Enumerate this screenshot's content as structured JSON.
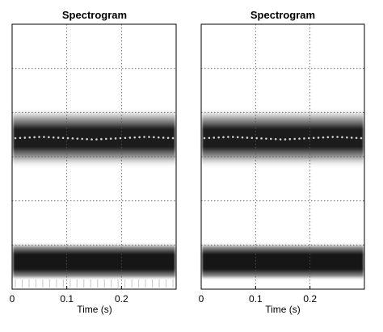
{
  "chart_data": [
    {
      "type": "heatmap",
      "title": "Spectrogram",
      "xlabel": "Time (s)",
      "ylabel": "",
      "xlim": [
        0,
        0.3
      ],
      "x_ticks": [
        "0",
        "0.1",
        "0.2"
      ],
      "x_tick_values": [
        0,
        0.1,
        0.2
      ],
      "y_ticks": [],
      "grid": true,
      "grid_style": "dotted",
      "colormap": "white-to-black",
      "bands": [
        {
          "name": "",
          "center": [
            0.57,
            0.575,
            0.57,
            0.565,
            0.57,
            0.575,
            0.57
          ],
          "half_width": 0.115,
          "dotted_center": true
        },
        {
          "name": "",
          "center": [
            0.105,
            0.105,
            0.105,
            0.105,
            0.105,
            0.105,
            0.105
          ],
          "half_width": 0.07,
          "dotted_center": false,
          "bottom_stripes": true
        }
      ]
    },
    {
      "type": "heatmap",
      "title": "Spectrogram",
      "xlabel": "Time (s)",
      "ylabel": "",
      "xlim": [
        0,
        0.3
      ],
      "x_ticks": [
        "0",
        "0.1",
        "0.2"
      ],
      "x_tick_values": [
        0,
        0.1,
        0.2
      ],
      "y_ticks": [],
      "grid": true,
      "grid_style": "dotted",
      "colormap": "white-to-black",
      "bands": [
        {
          "name": "",
          "center": [
            0.57,
            0.575,
            0.57,
            0.565,
            0.57,
            0.575,
            0.57
          ],
          "half_width": 0.115,
          "dotted_center": true
        },
        {
          "name": "",
          "center": [
            0.105,
            0.105,
            0.105,
            0.105,
            0.105,
            0.105,
            0.105
          ],
          "half_width": 0.07,
          "dotted_center": false,
          "bottom_stripes": false
        }
      ]
    }
  ]
}
